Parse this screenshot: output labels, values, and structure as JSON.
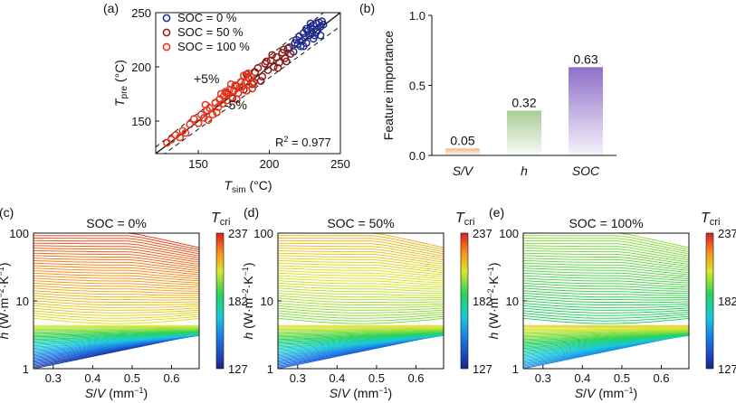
{
  "chart_data": [
    {
      "id": "a",
      "panel_label": "(a)",
      "type": "scatter",
      "xlabel": "T_sim (°C)",
      "xlabel_main": "T",
      "xlabel_sub": "sim",
      "xlabel_unit": " (°C)",
      "ylabel": "T_pre (°C)",
      "ylabel_main": "T",
      "ylabel_sub": "pre",
      "ylabel_unit": " (°C)",
      "xlim": [
        120,
        250
      ],
      "ylim": [
        120,
        250
      ],
      "xticks": [
        150,
        200,
        250
      ],
      "yticks": [
        150,
        200,
        250
      ],
      "annotations": {
        "plus": "+5%",
        "minus": "-5%",
        "r2_prefix": "R",
        "r2_sup": "2",
        "r2_value": " = 0.977"
      },
      "reference_lines": [
        {
          "name": "y = x",
          "slope": 1.0,
          "style": "solid"
        },
        {
          "name": "+5%",
          "slope": 1.05,
          "style": "dashed"
        },
        {
          "name": "-5%",
          "slope": 0.95,
          "style": "dashed"
        }
      ],
      "series": [
        {
          "name": "SOC = 0 %",
          "color": "#1f2a8c",
          "points": [
            [
              214,
              218
            ],
            [
              217,
              214
            ],
            [
              218,
              222
            ],
            [
              219,
              225
            ],
            [
              220,
              221
            ],
            [
              221,
              228
            ],
            [
              222,
              219
            ],
            [
              223,
              224
            ],
            [
              224,
              231
            ],
            [
              225,
              227
            ],
            [
              226,
              222
            ],
            [
              227,
              233
            ],
            [
              228,
              229
            ],
            [
              229,
              236
            ],
            [
              230,
              231
            ],
            [
              231,
              238
            ],
            [
              232,
              229
            ],
            [
              233,
              240
            ],
            [
              234,
              234
            ],
            [
              235,
              241
            ],
            [
              236,
              237
            ],
            [
              237,
              242
            ],
            [
              238,
              239
            ],
            [
              226,
              235
            ],
            [
              229,
              240
            ],
            [
              231,
              226
            ],
            [
              233,
              232
            ],
            [
              224,
              219
            ],
            [
              236,
              229
            ]
          ]
        },
        {
          "name": "SOC = 50 %",
          "color": "#8b1a1a",
          "points": [
            [
              170,
              176
            ],
            [
              174,
              171
            ],
            [
              177,
              182
            ],
            [
              180,
              186
            ],
            [
              182,
              179
            ],
            [
              185,
              190
            ],
            [
              188,
              184
            ],
            [
              190,
              195
            ],
            [
              192,
              199
            ],
            [
              195,
              191
            ],
            [
              197,
              203
            ],
            [
              199,
              197
            ],
            [
              201,
              206
            ],
            [
              203,
              200
            ],
            [
              205,
              209
            ],
            [
              207,
              204
            ],
            [
              209,
              213
            ],
            [
              211,
              208
            ],
            [
              213,
              217
            ],
            [
              215,
              212
            ],
            [
              184,
              193
            ],
            [
              189,
              186
            ],
            [
              194,
              187
            ],
            [
              198,
              205
            ],
            [
              202,
              211
            ],
            [
              206,
              199
            ],
            [
              210,
              216
            ],
            [
              212,
              205
            ]
          ]
        },
        {
          "name": "SOC = 100 %",
          "color": "#e8321a",
          "points": [
            [
              128,
              130
            ],
            [
              131,
              133
            ],
            [
              134,
              137
            ],
            [
              137,
              135
            ],
            [
              139,
              141
            ],
            [
              141,
              139
            ],
            [
              144,
              147
            ],
            [
              147,
              152
            ],
            [
              150,
              148
            ],
            [
              152,
              156
            ],
            [
              154,
              153
            ],
            [
              156,
              160
            ],
            [
              158,
              162
            ],
            [
              160,
              156
            ],
            [
              162,
              167
            ],
            [
              164,
              163
            ],
            [
              165,
              170
            ],
            [
              167,
              166
            ],
            [
              168,
              173
            ],
            [
              170,
              169
            ],
            [
              171,
              175
            ],
            [
              172,
              179
            ],
            [
              174,
              172
            ],
            [
              175,
              178
            ],
            [
              176,
              183
            ],
            [
              178,
              176
            ],
            [
              179,
              181
            ],
            [
              180,
              186
            ],
            [
              181,
              182
            ],
            [
              183,
              185
            ],
            [
              184,
              178
            ],
            [
              186,
              189
            ],
            [
              187,
              191
            ],
            [
              189,
              185
            ],
            [
              155,
              165
            ],
            [
              157,
              151
            ],
            [
              163,
              158
            ],
            [
              166,
              175
            ],
            [
              169,
              177
            ],
            [
              173,
              184
            ],
            [
              177,
              170
            ],
            [
              182,
              192
            ],
            [
              185,
              194
            ],
            [
              188,
              180
            ]
          ]
        }
      ]
    },
    {
      "id": "b",
      "panel_label": "(b)",
      "type": "bar",
      "ylabel": "Feature importance",
      "ylim": [
        0,
        1.0
      ],
      "yticks": [
        "0.0",
        "0.5",
        "1.0"
      ],
      "categories": [
        "S/V",
        "h",
        "SOC"
      ],
      "values": [
        0.05,
        0.32,
        0.63
      ],
      "value_labels": [
        "0.05",
        "0.32",
        "0.63"
      ],
      "colors": [
        "#f2b88a",
        "#a9cd94",
        "#8f6fc9"
      ]
    },
    {
      "id": "c",
      "panel_label": "(c)",
      "type": "heatmap",
      "title": "SOC = 0%",
      "soc": 0,
      "xlabel": "S/V (mm^-1)",
      "ylabel": "h (W·m^-2·K^-1)",
      "xlim": [
        0.25,
        0.67
      ],
      "ylim": [
        1,
        100
      ],
      "yscale": "log",
      "xticks": [
        "0.3",
        "0.4",
        "0.5",
        "0.6"
      ],
      "yticks": [
        "1",
        "10",
        "100"
      ],
      "colorbar": {
        "label": "T_cri",
        "ticks": [
          "237",
          "182",
          "127"
        ],
        "range": [
          127,
          237
        ]
      }
    },
    {
      "id": "d",
      "panel_label": "(d)",
      "type": "heatmap",
      "title": "SOC = 50%",
      "soc": 50,
      "xlabel": "S/V (mm^-1)",
      "ylabel": "h (W·m^-2·K^-1)",
      "xlim": [
        0.25,
        0.67
      ],
      "ylim": [
        1,
        100
      ],
      "yscale": "log",
      "xticks": [
        "0.3",
        "0.4",
        "0.5",
        "0.6"
      ],
      "yticks": [
        "1",
        "10",
        "100"
      ],
      "colorbar": {
        "label": "T_cri",
        "ticks": [
          "237",
          "182",
          "127"
        ],
        "range": [
          127,
          237
        ]
      }
    },
    {
      "id": "e",
      "panel_label": "(e)",
      "type": "heatmap",
      "title": "SOC = 100%",
      "soc": 100,
      "xlabel": "S/V (mm^-1)",
      "ylabel": "h (W·m^-2·K^-1)",
      "xlim": [
        0.25,
        0.67
      ],
      "ylim": [
        1,
        100
      ],
      "yscale": "log",
      "xticks": [
        "0.3",
        "0.4",
        "0.5",
        "0.6"
      ],
      "yticks": [
        "1",
        "10",
        "100"
      ],
      "colorbar": {
        "label": "T_cri",
        "ticks": [
          "237",
          "182",
          "127"
        ],
        "range": [
          127,
          237
        ]
      }
    }
  ]
}
